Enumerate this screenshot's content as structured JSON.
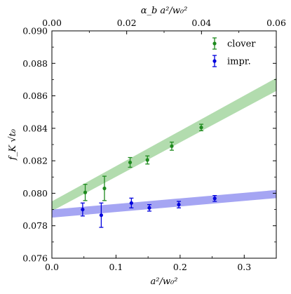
{
  "chart_data": {
    "type": "scatter",
    "xlabel": "a²/w₀²",
    "ylabel": "f_K √t₀",
    "top_xlabel": "α_b a²/w₀²",
    "xlim": [
      0,
      0.35
    ],
    "ylim": [
      0.076,
      0.09
    ],
    "top_xlim": [
      0.0,
      0.06
    ],
    "x_ticks": [
      0.0,
      0.1,
      0.2,
      0.3
    ],
    "x_tick_labels": [
      "0.0",
      "0.1",
      "0.2",
      "0.3"
    ],
    "top_x_ticks": [
      0.0,
      0.02,
      0.04,
      0.06
    ],
    "top_x_tick_labels": [
      "0.00",
      "0.02",
      "0.04",
      "0.06"
    ],
    "y_ticks": [
      0.076,
      0.078,
      0.08,
      0.082,
      0.084,
      0.086,
      0.088,
      0.09
    ],
    "y_tick_labels": [
      "0.076",
      "0.078",
      "0.080",
      "0.082",
      "0.084",
      "0.086",
      "0.088",
      "0.090"
    ],
    "legend_position": "top-right",
    "series": [
      {
        "name": "clover",
        "color": "#1e8a1e",
        "band_color": "#9fd39a",
        "points": [
          {
            "x": 0.052,
            "y": 0.08005,
            "err": 0.0005
          },
          {
            "x": 0.082,
            "y": 0.0803,
            "err": 0.00075
          },
          {
            "x": 0.122,
            "y": 0.0819,
            "err": 0.0003
          },
          {
            "x": 0.149,
            "y": 0.08205,
            "err": 0.00025
          },
          {
            "x": 0.187,
            "y": 0.0829,
            "err": 0.00025
          },
          {
            "x": 0.233,
            "y": 0.08405,
            "err": 0.0002
          }
        ],
        "band": [
          {
            "x": 0.0,
            "lo": 0.0789,
            "hi": 0.0795
          },
          {
            "x": 0.35,
            "lo": 0.0863,
            "hi": 0.0871
          }
        ]
      },
      {
        "name": "impr.",
        "color": "#0000dd",
        "band_color": "#8f8ff0",
        "points": [
          {
            "x": 0.048,
            "y": 0.079,
            "err": 0.0004
          },
          {
            "x": 0.077,
            "y": 0.07865,
            "err": 0.00075
          },
          {
            "x": 0.124,
            "y": 0.0794,
            "err": 0.0003
          },
          {
            "x": 0.152,
            "y": 0.0791,
            "err": 0.0002
          },
          {
            "x": 0.198,
            "y": 0.0793,
            "err": 0.0002
          },
          {
            "x": 0.254,
            "y": 0.07968,
            "err": 0.00018
          }
        ],
        "band": [
          {
            "x": 0.0,
            "lo": 0.0785,
            "hi": 0.079
          },
          {
            "x": 0.35,
            "lo": 0.0797,
            "hi": 0.0802
          }
        ]
      }
    ]
  }
}
